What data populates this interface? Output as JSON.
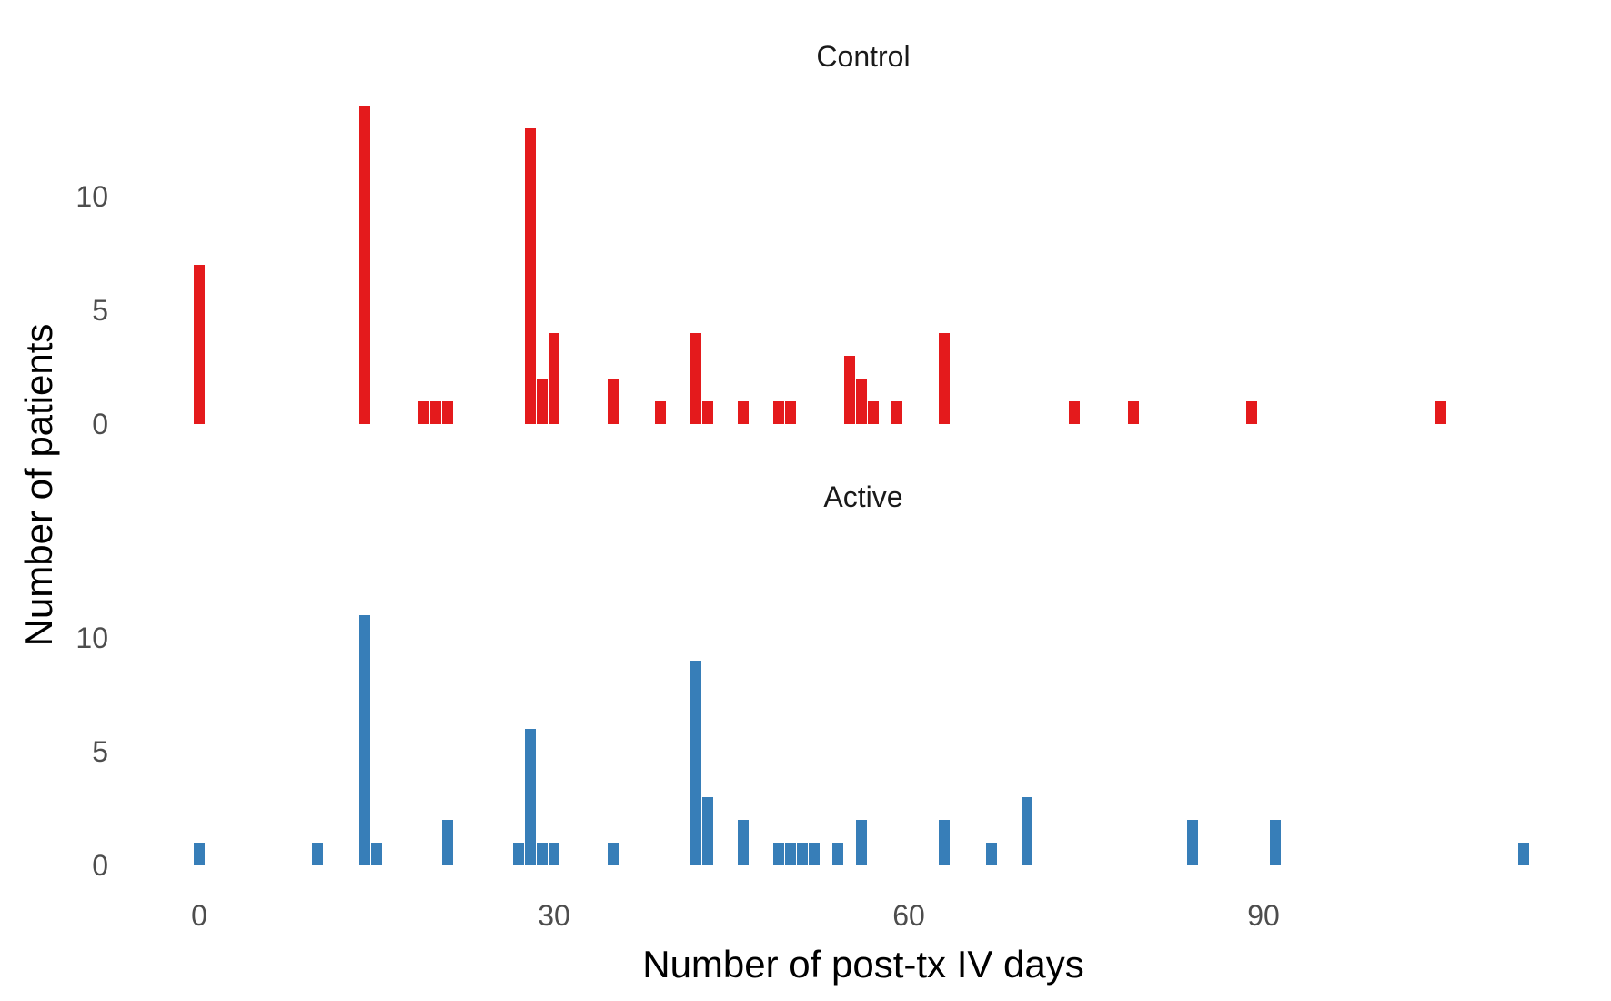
{
  "chart_data": {
    "type": "bar",
    "xlabel": "Number of post-tx IV days",
    "ylabel": "Number of patients",
    "x_ticks": [
      0,
      30,
      60,
      90
    ],
    "y_ticks": [
      0,
      5,
      10
    ],
    "xlim": [
      -2,
      112
    ],
    "ylim": [
      0,
      14.5
    ],
    "grid": false,
    "legend": "none",
    "panels": [
      {
        "title": "Control",
        "color": "#E41A1C",
        "values": [
          {
            "x": 0,
            "y": 7
          },
          {
            "x": 14,
            "y": 14
          },
          {
            "x": 19,
            "y": 1
          },
          {
            "x": 20,
            "y": 1
          },
          {
            "x": 21,
            "y": 1
          },
          {
            "x": 28,
            "y": 13
          },
          {
            "x": 29,
            "y": 2
          },
          {
            "x": 30,
            "y": 4
          },
          {
            "x": 35,
            "y": 2
          },
          {
            "x": 39,
            "y": 1
          },
          {
            "x": 42,
            "y": 4
          },
          {
            "x": 43,
            "y": 1
          },
          {
            "x": 46,
            "y": 1
          },
          {
            "x": 49,
            "y": 1
          },
          {
            "x": 50,
            "y": 1
          },
          {
            "x": 55,
            "y": 3
          },
          {
            "x": 56,
            "y": 2
          },
          {
            "x": 57,
            "y": 1
          },
          {
            "x": 59,
            "y": 1
          },
          {
            "x": 63,
            "y": 4
          },
          {
            "x": 74,
            "y": 1
          },
          {
            "x": 79,
            "y": 1
          },
          {
            "x": 89,
            "y": 1
          },
          {
            "x": 105,
            "y": 1
          }
        ]
      },
      {
        "title": "Active",
        "color": "#377EB8",
        "values": [
          {
            "x": 0,
            "y": 1
          },
          {
            "x": 10,
            "y": 1
          },
          {
            "x": 14,
            "y": 11
          },
          {
            "x": 15,
            "y": 1
          },
          {
            "x": 21,
            "y": 2
          },
          {
            "x": 27,
            "y": 1
          },
          {
            "x": 28,
            "y": 6
          },
          {
            "x": 29,
            "y": 1
          },
          {
            "x": 30,
            "y": 1
          },
          {
            "x": 35,
            "y": 1
          },
          {
            "x": 42,
            "y": 9
          },
          {
            "x": 43,
            "y": 3
          },
          {
            "x": 46,
            "y": 2
          },
          {
            "x": 49,
            "y": 1
          },
          {
            "x": 50,
            "y": 1
          },
          {
            "x": 51,
            "y": 1
          },
          {
            "x": 52,
            "y": 1
          },
          {
            "x": 54,
            "y": 1
          },
          {
            "x": 56,
            "y": 2
          },
          {
            "x": 63,
            "y": 2
          },
          {
            "x": 67,
            "y": 1
          },
          {
            "x": 70,
            "y": 3
          },
          {
            "x": 84,
            "y": 2
          },
          {
            "x": 91,
            "y": 2
          },
          {
            "x": 112,
            "y": 1
          }
        ]
      }
    ]
  }
}
